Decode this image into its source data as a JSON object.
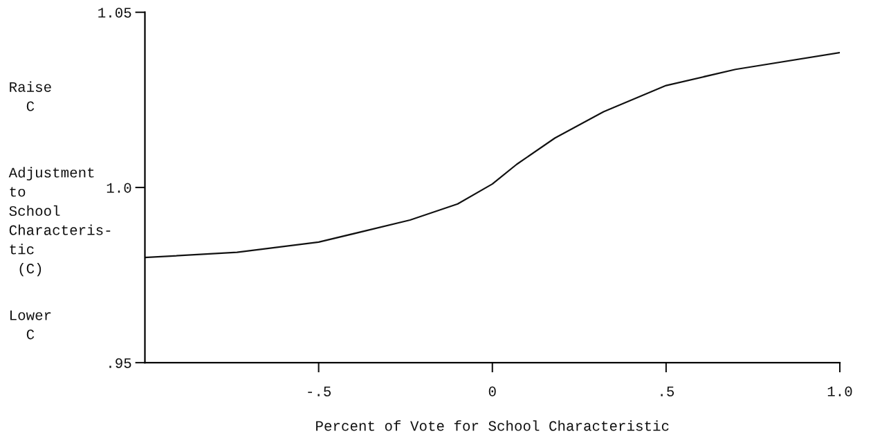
{
  "chart_data": {
    "type": "line",
    "xlabel": "Percent of Vote for School Characteristic",
    "ylabel": "Adjustment\nto\nSchool\nCharacteris-\ntic\n (C)",
    "annotations": [
      "Raise\n  C",
      "Lower\n  C"
    ],
    "series": [
      {
        "color": "#111111",
        "x": [
          -1.0,
          -0.735,
          -0.5,
          -0.237,
          -0.1,
          0.0,
          0.07,
          0.18,
          0.32,
          0.5,
          0.7,
          1.0
        ],
        "values": [
          0.98,
          0.9815,
          0.9844,
          0.9907,
          0.9953,
          1.001,
          1.0066,
          1.0141,
          1.0216,
          1.0291,
          1.0337,
          1.0385
        ]
      }
    ],
    "xlim": [
      -1.0,
      1.0
    ],
    "ylim": [
      0.95,
      1.05
    ],
    "xticks": [
      {
        "value": -0.5,
        "label": "-.5"
      },
      0,
      {
        "value": 0.5,
        "label": ".5"
      },
      {
        "value": 1.0,
        "label": "1.0"
      }
    ],
    "yticks": [
      {
        "value": 0.95,
        "label": ".95"
      },
      {
        "value": 1.0,
        "label": "1.0"
      },
      {
        "value": 1.05,
        "label": "1.05"
      }
    ],
    "grid": false,
    "legend": false,
    "marker": "none",
    "line_style": "solid"
  }
}
